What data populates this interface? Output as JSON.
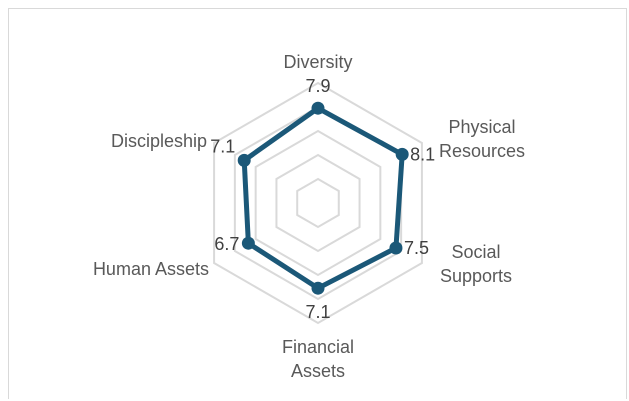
{
  "chart_data": {
    "type": "radar",
    "title": "",
    "categories": [
      [
        "Diversity"
      ],
      [
        "Physical",
        "Resources"
      ],
      [
        "Social",
        "Supports"
      ],
      [
        "Financial",
        "Assets"
      ],
      [
        "Human Assets"
      ],
      [
        "Discipleship"
      ]
    ],
    "series": [
      {
        "values": [
          7.9,
          8.1,
          7.5,
          7.1,
          6.7,
          7.1
        ],
        "value_labels": [
          "7.9",
          "8.1",
          "7.5",
          "7.1",
          "6.7",
          "7.1"
        ]
      }
    ],
    "rlim": [
      0,
      10
    ],
    "grid_rings": 5,
    "legend": "none",
    "colors": {
      "series": "#1b5878",
      "grid": "#d9d9d9",
      "label": "#595959"
    }
  }
}
